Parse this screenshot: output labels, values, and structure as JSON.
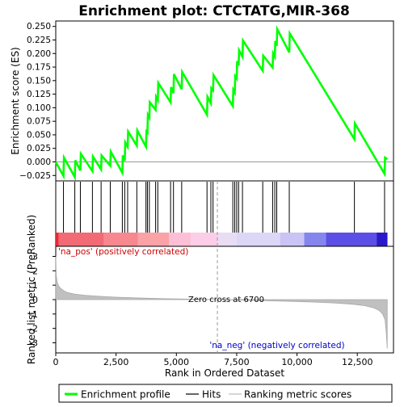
{
  "chart_data": {
    "type": "line",
    "title": "Enrichment plot: CTCTATG,MIR-368",
    "top_panel": {
      "ylabel": "Enrichment score (ES)",
      "ylim": [
        -0.035,
        0.26
      ],
      "yticks": [
        -0.025,
        0.0,
        0.025,
        0.05,
        0.075,
        0.1,
        0.125,
        0.15,
        0.175,
        0.2,
        0.225,
        0.25
      ],
      "ytick_labels": [
        "−0.025",
        "0.000",
        "0.025",
        "0.050",
        "0.075",
        "0.100",
        "0.125",
        "0.150",
        "0.175",
        "0.200",
        "0.225",
        "0.250"
      ],
      "series_name": "Enrichment profile",
      "line_color": "#00ff00",
      "es_x": [
        0,
        320,
        340,
        790,
        810,
        1020,
        1040,
        1520,
        1540,
        1880,
        1900,
        2260,
        2280,
        2760,
        2780,
        2860,
        2880,
        2980,
        3000,
        3360,
        3380,
        3740,
        3760,
        3800,
        3820,
        3880,
        3900,
        4140,
        4160,
        4230,
        4250,
        4760,
        4780,
        4880,
        4900,
        5220,
        5240,
        6270,
        6290,
        6430,
        6450,
        6520,
        6540,
        7340,
        7360,
        7420,
        7440,
        7500,
        7520,
        7580,
        7600,
        7740,
        7760,
        8580,
        8600,
        8990,
        9010,
        9080,
        9100,
        9160,
        9180,
        9680,
        9700,
        12380,
        12400,
        13630,
        13650,
        13750
      ],
      "es_y": [
        0.0,
        -0.026,
        0.008,
        -0.028,
        0.003,
        -0.016,
        0.015,
        -0.017,
        0.01,
        -0.014,
        0.012,
        -0.007,
        0.019,
        -0.02,
        0.012,
        0.002,
        0.036,
        0.028,
        0.056,
        0.03,
        0.058,
        0.028,
        0.056,
        0.054,
        0.087,
        0.082,
        0.11,
        0.096,
        0.12,
        0.114,
        0.146,
        0.11,
        0.138,
        0.127,
        0.162,
        0.134,
        0.166,
        0.087,
        0.12,
        0.108,
        0.136,
        0.132,
        0.16,
        0.103,
        0.133,
        0.128,
        0.158,
        0.154,
        0.186,
        0.178,
        0.206,
        0.194,
        0.224,
        0.168,
        0.196,
        0.174,
        0.2,
        0.194,
        0.223,
        0.214,
        0.245,
        0.202,
        0.237,
        0.042,
        0.071,
        -0.022,
        0.008,
        0.005
      ]
    },
    "hits_panel": {
      "series_name": "Hits",
      "hit_positions": [
        320,
        790,
        1020,
        1520,
        1880,
        2260,
        2760,
        2860,
        2980,
        3360,
        3740,
        3800,
        3880,
        4140,
        4230,
        4760,
        4880,
        5220,
        6270,
        6430,
        6520,
        7340,
        7420,
        7500,
        7580,
        7740,
        8580,
        8990,
        9080,
        9160,
        9680,
        12380,
        13630
      ]
    },
    "bottom_panel": {
      "ylabel": "Ranked list metric (PreRanked)",
      "xlabel": "Rank in Ordered Dataset",
      "series_name": "Ranking metric scores",
      "ylim": [
        -3.7,
        3.7
      ],
      "yticks": [
        -3,
        -2,
        -1,
        0,
        1,
        2,
        3
      ],
      "ytick_labels": [
        "-3",
        "-2",
        "-1",
        "0",
        "1",
        "2",
        "3"
      ],
      "metric_x": [
        0,
        20,
        60,
        120,
        200,
        350,
        500,
        800,
        1200,
        1800,
        2500,
        3500,
        4500,
        5500,
        6700,
        8000,
        9500,
        10500,
        11500,
        12300,
        12800,
        13200,
        13400,
        13550,
        13650,
        13700,
        13740
      ],
      "metric_y": [
        3.0,
        1.7,
        1.2,
        0.95,
        0.78,
        0.6,
        0.48,
        0.38,
        0.3,
        0.23,
        0.17,
        0.11,
        0.06,
        0.03,
        0.0,
        -0.05,
        -0.11,
        -0.16,
        -0.23,
        -0.32,
        -0.42,
        -0.58,
        -0.75,
        -1.0,
        -1.4,
        -2.3,
        -3.4
      ],
      "zero_cross_label": "Zero cross at 6700",
      "zero_cross_x": 6700,
      "pos_label": "'na_pos' (positively correlated)",
      "neg_label": "'na_neg' (negatively correlated)",
      "pos_color": "#cc0000",
      "neg_color": "#0000cc"
    },
    "xlim": [
      0,
      14000
    ],
    "xticks": [
      0,
      2500,
      5000,
      7500,
      10000,
      12500
    ],
    "xtick_labels": [
      "0",
      "2,500",
      "5,000",
      "7,500",
      "10,000",
      "12,500"
    ],
    "colorbar_segments": [
      {
        "from": 0,
        "to": 120,
        "color": "#e8283a"
      },
      {
        "from": 120,
        "to": 2000,
        "color": "#f26a75"
      },
      {
        "from": 2000,
        "to": 3400,
        "color": "#f7888f"
      },
      {
        "from": 3400,
        "to": 4700,
        "color": "#fba2a7"
      },
      {
        "from": 4700,
        "to": 5600,
        "color": "#fdbfd6"
      },
      {
        "from": 5600,
        "to": 6700,
        "color": "#fccde6"
      },
      {
        "from": 6700,
        "to": 7500,
        "color": "#e9dcf5"
      },
      {
        "from": 7500,
        "to": 9300,
        "color": "#dcd6f7"
      },
      {
        "from": 9300,
        "to": 10300,
        "color": "#c9c3f6"
      },
      {
        "from": 10300,
        "to": 11200,
        "color": "#8585ee"
      },
      {
        "from": 11200,
        "to": 13300,
        "color": "#5b4fe6"
      },
      {
        "from": 13300,
        "to": 13750,
        "color": "#2a19c9"
      }
    ],
    "legend": {
      "placement": "bottom",
      "items": [
        {
          "label": "Enrichment profile",
          "color": "#00ff00",
          "kind": "thick-line"
        },
        {
          "label": "Hits",
          "color": "#000000",
          "kind": "line"
        },
        {
          "label": "Ranking metric scores",
          "color": "#bbbbbb",
          "kind": "line"
        }
      ]
    }
  }
}
